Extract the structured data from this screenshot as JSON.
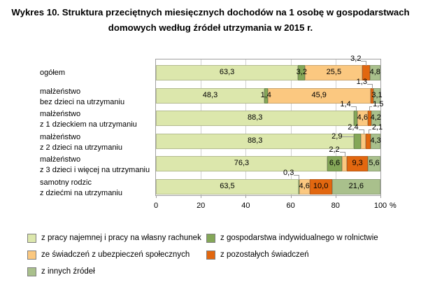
{
  "title": {
    "line1": "Wykres 10. Struktura przeciętnych miesięcznych dochodów na 1 osobę w gospodarstwach",
    "line2": "domowych według źródeł utrzymania w 2015 r."
  },
  "axis": {
    "unit": "%"
  },
  "colors": {
    "work": "#dce7ac",
    "farm": "#84a758",
    "social": "#fbc880",
    "other_benefits": "#e2670f",
    "other_sources": "#a9c08c",
    "plot_border": "#a0a0a0",
    "gridline": "#d0d0d0",
    "callout_line": "#999999"
  },
  "legend": {
    "columns": [
      {
        "items": [
          {
            "label": "z pracy najemnej i pracy na własny rachunek",
            "color": "#dce7ac"
          },
          {
            "label": "ze świadczeń z ubezpieczeń społecznych",
            "color": "#fbc880"
          },
          {
            "label": "z innych źródeł",
            "color": "#a9c08c"
          }
        ]
      },
      {
        "items": [
          {
            "label": "z gospodarstwa indywidualnego w rolnictwie",
            "color": "#84a758"
          },
          {
            "label": "z pozostałych świadczeń",
            "color": "#e2670f"
          }
        ]
      }
    ]
  },
  "chart_data": {
    "type": "bar",
    "stacked": true,
    "orientation": "horizontal",
    "title": "Wykres 10. Struktura przeciętnych miesięcznych dochodów na 1 osobę w gospodarstwach domowych według źródeł utrzymania w 2015 r.",
    "xlim": [
      0,
      100
    ],
    "x_ticks": [
      0,
      20,
      40,
      60,
      80,
      100
    ],
    "x_unit": "%",
    "grid": true,
    "legend_position": "bottom",
    "categories": [
      [
        "ogółem"
      ],
      [
        "małżeństwo",
        "bez dzieci na utrzymaniu"
      ],
      [
        "małżeństwo",
        "z 1 dzieckiem na utrzymaniu"
      ],
      [
        "małżeństwo",
        "z 2 dzieci na utrzymaniu"
      ],
      [
        "małżeństwo",
        "z 3 dzieci i więcej na utrzymaniu"
      ],
      [
        "samotny rodzic",
        "z dziećmi na utrzymaniu"
      ]
    ],
    "series": [
      {
        "name": "z pracy najemnej i pracy na własny rachunek",
        "color": "#dce7ac",
        "values": [
          63.3,
          48.3,
          88.3,
          88.3,
          76.3,
          63.5
        ]
      },
      {
        "name": "z gospodarstwa indywidualnego w rolnictwie",
        "color": "#84a758",
        "values": [
          3.2,
          1.4,
          1.4,
          2.9,
          6.6,
          0.3
        ]
      },
      {
        "name": "ze świadczeń z ubezpieczeń społecznych",
        "color": "#fbc880",
        "values": [
          25.5,
          45.9,
          4.6,
          2.4,
          2.2,
          4.6
        ]
      },
      {
        "name": "z pozostałych świadczeń",
        "color": "#e2670f",
        "values": [
          3.2,
          1.3,
          1.5,
          2.1,
          9.3,
          10.0
        ]
      },
      {
        "name": "z innych źródeł",
        "color": "#a9c08c",
        "values": [
          4.8,
          3.1,
          4.2,
          4.3,
          5.6,
          21.6
        ]
      }
    ],
    "value_labels": [
      [
        "63,3",
        "3,2",
        "25,5",
        "3,2",
        "4,8"
      ],
      [
        "48,3",
        "1,4",
        "45,9",
        "1,3",
        "3,1"
      ],
      [
        "88,3",
        "1,4",
        "4,6",
        "1,5",
        "4,2"
      ],
      [
        "88,3",
        "2,9",
        "2,4",
        "2,1",
        "4,3"
      ],
      [
        "76,3",
        "6,6",
        "2,2",
        "9,3",
        "5,6"
      ],
      [
        "63,5",
        "0,3",
        "4,6",
        "10,0",
        "21,6"
      ]
    ],
    "label_placements": [
      [
        "in",
        "in",
        "in",
        "above-right",
        "in"
      ],
      [
        "in",
        "in",
        "in",
        "above-right",
        "in"
      ],
      [
        "in",
        "above-right",
        "in",
        "above-left",
        "in"
      ],
      [
        "in",
        "side-dash",
        "above-right",
        "above-left",
        "in"
      ],
      [
        "in",
        "in",
        "above-right",
        "in",
        "in"
      ],
      [
        "in",
        "above-right",
        "in",
        "in",
        "in"
      ]
    ]
  }
}
